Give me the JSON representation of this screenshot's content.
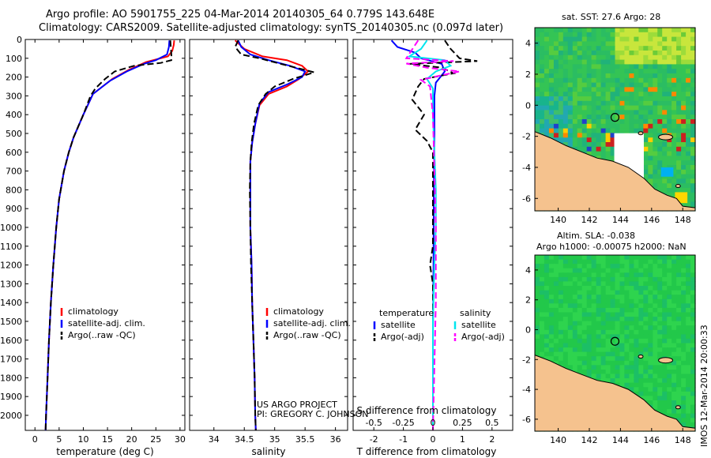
{
  "header": {
    "line1": "Argo profile: AO 5901755_225 04-Mar-2014 20140305_64 0.779S 143.648E",
    "line2": "Climatology: CARS2009. Satellite-adjusted climatology: synTS_20140305.nc (0.097d later)"
  },
  "chart_data": [
    {
      "type": "line",
      "panel": "temperature",
      "xlabel": "temperature (deg C)",
      "ylabel": "",
      "xlim": [
        -2,
        31
      ],
      "ylim": [
        0,
        2080
      ],
      "y_reversed": true,
      "xticks": [
        "0",
        "5",
        "10",
        "15",
        "20",
        "25",
        "30"
      ],
      "yticks": [
        "0",
        "100",
        "200",
        "300",
        "400",
        "500",
        "600",
        "700",
        "800",
        "900",
        "1000",
        "1100",
        "1200",
        "1300",
        "1400",
        "1500",
        "1600",
        "1700",
        "1800",
        "1900",
        "2000"
      ],
      "legend": [
        "climatology",
        "satellite-adj. clim.",
        "Argo(..raw -QC)"
      ],
      "series": [
        {
          "name": "climatology",
          "color": "#ff0000",
          "points": [
            [
              28.8,
              5
            ],
            [
              28.7,
              30
            ],
            [
              28.4,
              60
            ],
            [
              27.5,
              90
            ],
            [
              23.0,
              120
            ],
            [
              19.5,
              160
            ],
            [
              16.0,
              210
            ],
            [
              12.0,
              290
            ],
            [
              10.0,
              400
            ],
            [
              8.0,
              520
            ],
            [
              7.0,
              600
            ],
            [
              6.0,
              700
            ],
            [
              5.0,
              850
            ],
            [
              4.4,
              1000
            ],
            [
              3.8,
              1200
            ],
            [
              3.3,
              1400
            ],
            [
              2.9,
              1600
            ],
            [
              2.6,
              1800
            ],
            [
              2.3,
              2000
            ],
            [
              2.2,
              2080
            ]
          ]
        },
        {
          "name": "satellite-adj. clim.",
          "color": "#0000ff",
          "points": [
            [
              27.8,
              5
            ],
            [
              27.7,
              40
            ],
            [
              27.3,
              80
            ],
            [
              25.0,
              110
            ],
            [
              22.5,
              130
            ],
            [
              19.0,
              170
            ],
            [
              15.5,
              220
            ],
            [
              12.0,
              290
            ],
            [
              10.0,
              400
            ],
            [
              8.0,
              520
            ],
            [
              7.0,
              600
            ],
            [
              6.0,
              700
            ],
            [
              5.0,
              850
            ],
            [
              4.4,
              1000
            ],
            [
              3.8,
              1200
            ],
            [
              3.3,
              1400
            ],
            [
              2.9,
              1600
            ],
            [
              2.6,
              1800
            ],
            [
              2.3,
              2000
            ],
            [
              2.2,
              2080
            ]
          ]
        },
        {
          "name": "Argo(..raw -QC)",
          "color": "#000000",
          "dashed": true,
          "points": [
            [
              28.0,
              5
            ],
            [
              28.1,
              40
            ],
            [
              28.2,
              80
            ],
            [
              28.2,
              110
            ],
            [
              26.0,
              125
            ],
            [
              20.5,
              140
            ],
            [
              16.5,
              170
            ],
            [
              14.5,
              210
            ],
            [
              12.5,
              260
            ],
            [
              11.5,
              300
            ],
            [
              10.0,
              400
            ],
            [
              8.0,
              520
            ],
            [
              7.0,
              600
            ],
            [
              6.0,
              700
            ],
            [
              5.0,
              850
            ],
            [
              4.4,
              1000
            ],
            [
              3.8,
              1200
            ],
            [
              3.3,
              1400
            ],
            [
              2.9,
              1600
            ],
            [
              2.6,
              1800
            ],
            [
              2.3,
              2000
            ],
            [
              2.2,
              2080
            ]
          ]
        }
      ]
    },
    {
      "type": "line",
      "panel": "salinity",
      "xlabel": "salinity",
      "xlim": [
        33.6,
        36.2
      ],
      "ylim": [
        0,
        2080
      ],
      "y_reversed": true,
      "xticks": [
        "34",
        "34.5",
        "35",
        "35.5",
        "36"
      ],
      "legend": [
        "climatology",
        "satellite-adj. clim.",
        "Argo(..raw -QC)"
      ],
      "series": [
        {
          "name": "climatology",
          "color": "#ff0000",
          "points": [
            [
              34.35,
              5
            ],
            [
              34.5,
              50
            ],
            [
              34.8,
              90
            ],
            [
              35.2,
              110
            ],
            [
              35.45,
              140
            ],
            [
              35.55,
              170
            ],
            [
              35.4,
              210
            ],
            [
              35.2,
              250
            ],
            [
              34.9,
              290
            ],
            [
              34.75,
              350
            ],
            [
              34.68,
              450
            ],
            [
              34.63,
              550
            ],
            [
              34.6,
              650
            ],
            [
              34.6,
              800
            ],
            [
              34.6,
              1000
            ],
            [
              34.62,
              1200
            ],
            [
              34.63,
              1400
            ],
            [
              34.65,
              1600
            ],
            [
              34.67,
              1800
            ],
            [
              34.68,
              2000
            ],
            [
              34.69,
              2080
            ]
          ]
        },
        {
          "name": "satellite-adj. clim.",
          "color": "#0000ff",
          "points": [
            [
              34.4,
              5
            ],
            [
              34.45,
              40
            ],
            [
              34.6,
              80
            ],
            [
              34.9,
              110
            ],
            [
              35.25,
              140
            ],
            [
              35.5,
              170
            ],
            [
              35.45,
              200
            ],
            [
              35.2,
              240
            ],
            [
              34.9,
              280
            ],
            [
              34.75,
              340
            ],
            [
              34.68,
              450
            ],
            [
              34.63,
              550
            ],
            [
              34.6,
              650
            ],
            [
              34.6,
              800
            ],
            [
              34.6,
              1000
            ],
            [
              34.62,
              1200
            ],
            [
              34.63,
              1400
            ],
            [
              34.65,
              1600
            ],
            [
              34.67,
              1800
            ],
            [
              34.68,
              2000
            ],
            [
              34.69,
              2080
            ]
          ]
        },
        {
          "name": "Argo(..raw -QC)",
          "color": "#000000",
          "dashed": true,
          "points": [
            [
              34.4,
              5
            ],
            [
              34.35,
              40
            ],
            [
              34.45,
              80
            ],
            [
              34.75,
              100
            ],
            [
              35.1,
              130
            ],
            [
              35.35,
              150
            ],
            [
              35.65,
              175
            ],
            [
              35.3,
              210
            ],
            [
              35.0,
              250
            ],
            [
              34.85,
              290
            ],
            [
              34.73,
              350
            ],
            [
              34.66,
              450
            ],
            [
              34.62,
              550
            ],
            [
              34.6,
              650
            ],
            [
              34.59,
              800
            ],
            [
              34.6,
              1000
            ],
            [
              34.61,
              1200
            ],
            [
              34.63,
              1400
            ],
            [
              34.65,
              1600
            ],
            [
              34.67,
              1800
            ],
            [
              34.68,
              2000
            ],
            [
              34.69,
              2080
            ]
          ]
        }
      ]
    },
    {
      "type": "line",
      "panel": "differences",
      "xlabel_bottom": "T difference from climatology",
      "xlabel_top_inner": "S difference from climatology",
      "xlim": [
        -2.7,
        2.7
      ],
      "ylim": [
        0,
        2080
      ],
      "y_reversed": true,
      "xticks_T": [
        "-2",
        "-1",
        "0",
        "1",
        "2"
      ],
      "xticks_S": [
        "-0.5",
        "-0.25",
        "0",
        "0.25",
        "0.5"
      ],
      "legend_headers": [
        "temperature",
        "salinity"
      ],
      "legend": [
        "satellite",
        "Argo(-adj)",
        "satellite",
        "Argo(-adj)"
      ],
      "series": [
        {
          "name": "temperature satellite",
          "color": "#0000ff",
          "points": [
            [
              -1.4,
              5
            ],
            [
              -1.2,
              40
            ],
            [
              -0.6,
              70
            ],
            [
              -0.4,
              100
            ],
            [
              0.3,
              130
            ],
            [
              0.4,
              170
            ],
            [
              0.1,
              230
            ],
            [
              0.05,
              300
            ],
            [
              0.05,
              500
            ],
            [
              0.03,
              800
            ],
            [
              0.02,
              1200
            ],
            [
              0.0,
              1600
            ],
            [
              0.0,
              2080
            ]
          ]
        },
        {
          "name": "temperature Argo(-adj)",
          "color": "#000000",
          "dashed": true,
          "points": [
            [
              0.4,
              5
            ],
            [
              0.6,
              50
            ],
            [
              0.9,
              100
            ],
            [
              1.5,
              115
            ],
            [
              -0.8,
              130
            ],
            [
              0.3,
              150
            ],
            [
              0.7,
              180
            ],
            [
              -0.3,
              210
            ],
            [
              -0.5,
              250
            ],
            [
              -0.7,
              320
            ],
            [
              -0.3,
              400
            ],
            [
              -0.6,
              480
            ],
            [
              -0.2,
              540
            ],
            [
              0.0,
              600
            ],
            [
              0.0,
              800
            ],
            [
              0.0,
              1100
            ],
            [
              -0.1,
              1200
            ],
            [
              0.0,
              1300
            ],
            [
              0.0,
              2080
            ]
          ]
        },
        {
          "name": "salinity satellite",
          "color": "#00e5ee",
          "points": [
            [
              -0.2,
              5
            ],
            [
              -0.4,
              50
            ],
            [
              -0.8,
              90
            ],
            [
              0.4,
              110
            ],
            [
              0.6,
              140
            ],
            [
              0.1,
              170
            ],
            [
              -0.2,
              210
            ],
            [
              0.0,
              260
            ],
            [
              0.0,
              400
            ],
            [
              0.05,
              600
            ],
            [
              0.1,
              800
            ],
            [
              0.1,
              1000
            ],
            [
              0.05,
              1200
            ],
            [
              0.0,
              1500
            ],
            [
              0.0,
              2080
            ]
          ]
        },
        {
          "name": "salinity Argo(-adj)",
          "color": "#ff00ff",
          "dashed": true,
          "points": [
            [
              -0.5,
              5
            ],
            [
              -0.9,
              100
            ],
            [
              0.7,
              115
            ],
            [
              -0.9,
              128
            ],
            [
              -0.2,
              150
            ],
            [
              0.9,
              170
            ],
            [
              0.3,
              190
            ],
            [
              -0.4,
              215
            ],
            [
              -0.1,
              250
            ],
            [
              0.0,
              400
            ],
            [
              0.05,
              700
            ],
            [
              0.1,
              1000
            ],
            [
              0.1,
              1200
            ],
            [
              0.1,
              1400
            ],
            [
              0.0,
              2080
            ]
          ]
        }
      ]
    },
    {
      "type": "heatmap",
      "panel": "sst-map",
      "title": "sat. SST: 27.6 Argo: 28",
      "xlim": [
        138.5,
        148.8
      ],
      "ylim": [
        -6.8,
        5.0
      ],
      "xticks": [
        "140",
        "142",
        "144",
        "146",
        "148"
      ],
      "yticks": [
        "4",
        "2",
        "0",
        "-2",
        "-4",
        "-6"
      ],
      "float_lon": 143.648,
      "float_lat": -0.779
    },
    {
      "type": "heatmap",
      "panel": "sla-map",
      "title_line1": "Altim. SLA: -0.038",
      "title_line2": "Argo h1000: -0.00075 h2000: NaN",
      "xlim": [
        138.5,
        148.8
      ],
      "ylim": [
        -6.8,
        5.0
      ],
      "xticks": [
        "140",
        "142",
        "144",
        "146",
        "148"
      ],
      "yticks": [
        "4",
        "2",
        "0",
        "-2",
        "-4",
        "-6"
      ],
      "float_lon": 143.648,
      "float_lat": -0.779
    }
  ],
  "credits": {
    "project": "US ARGO PROJECT",
    "pi": "PI: GREGORY C. JOHNSON"
  },
  "footer": {
    "imos": "IMOS 12-Mar-2014 20:00:33"
  },
  "colors": {
    "climatology": "#ff0000",
    "satellite": "#0000ff",
    "argo": "#000000",
    "sal_satellite": "#00e5ee",
    "sal_argo": "#ff00ff",
    "land": "#f5c28e",
    "sea_green": "#2ecc40"
  }
}
